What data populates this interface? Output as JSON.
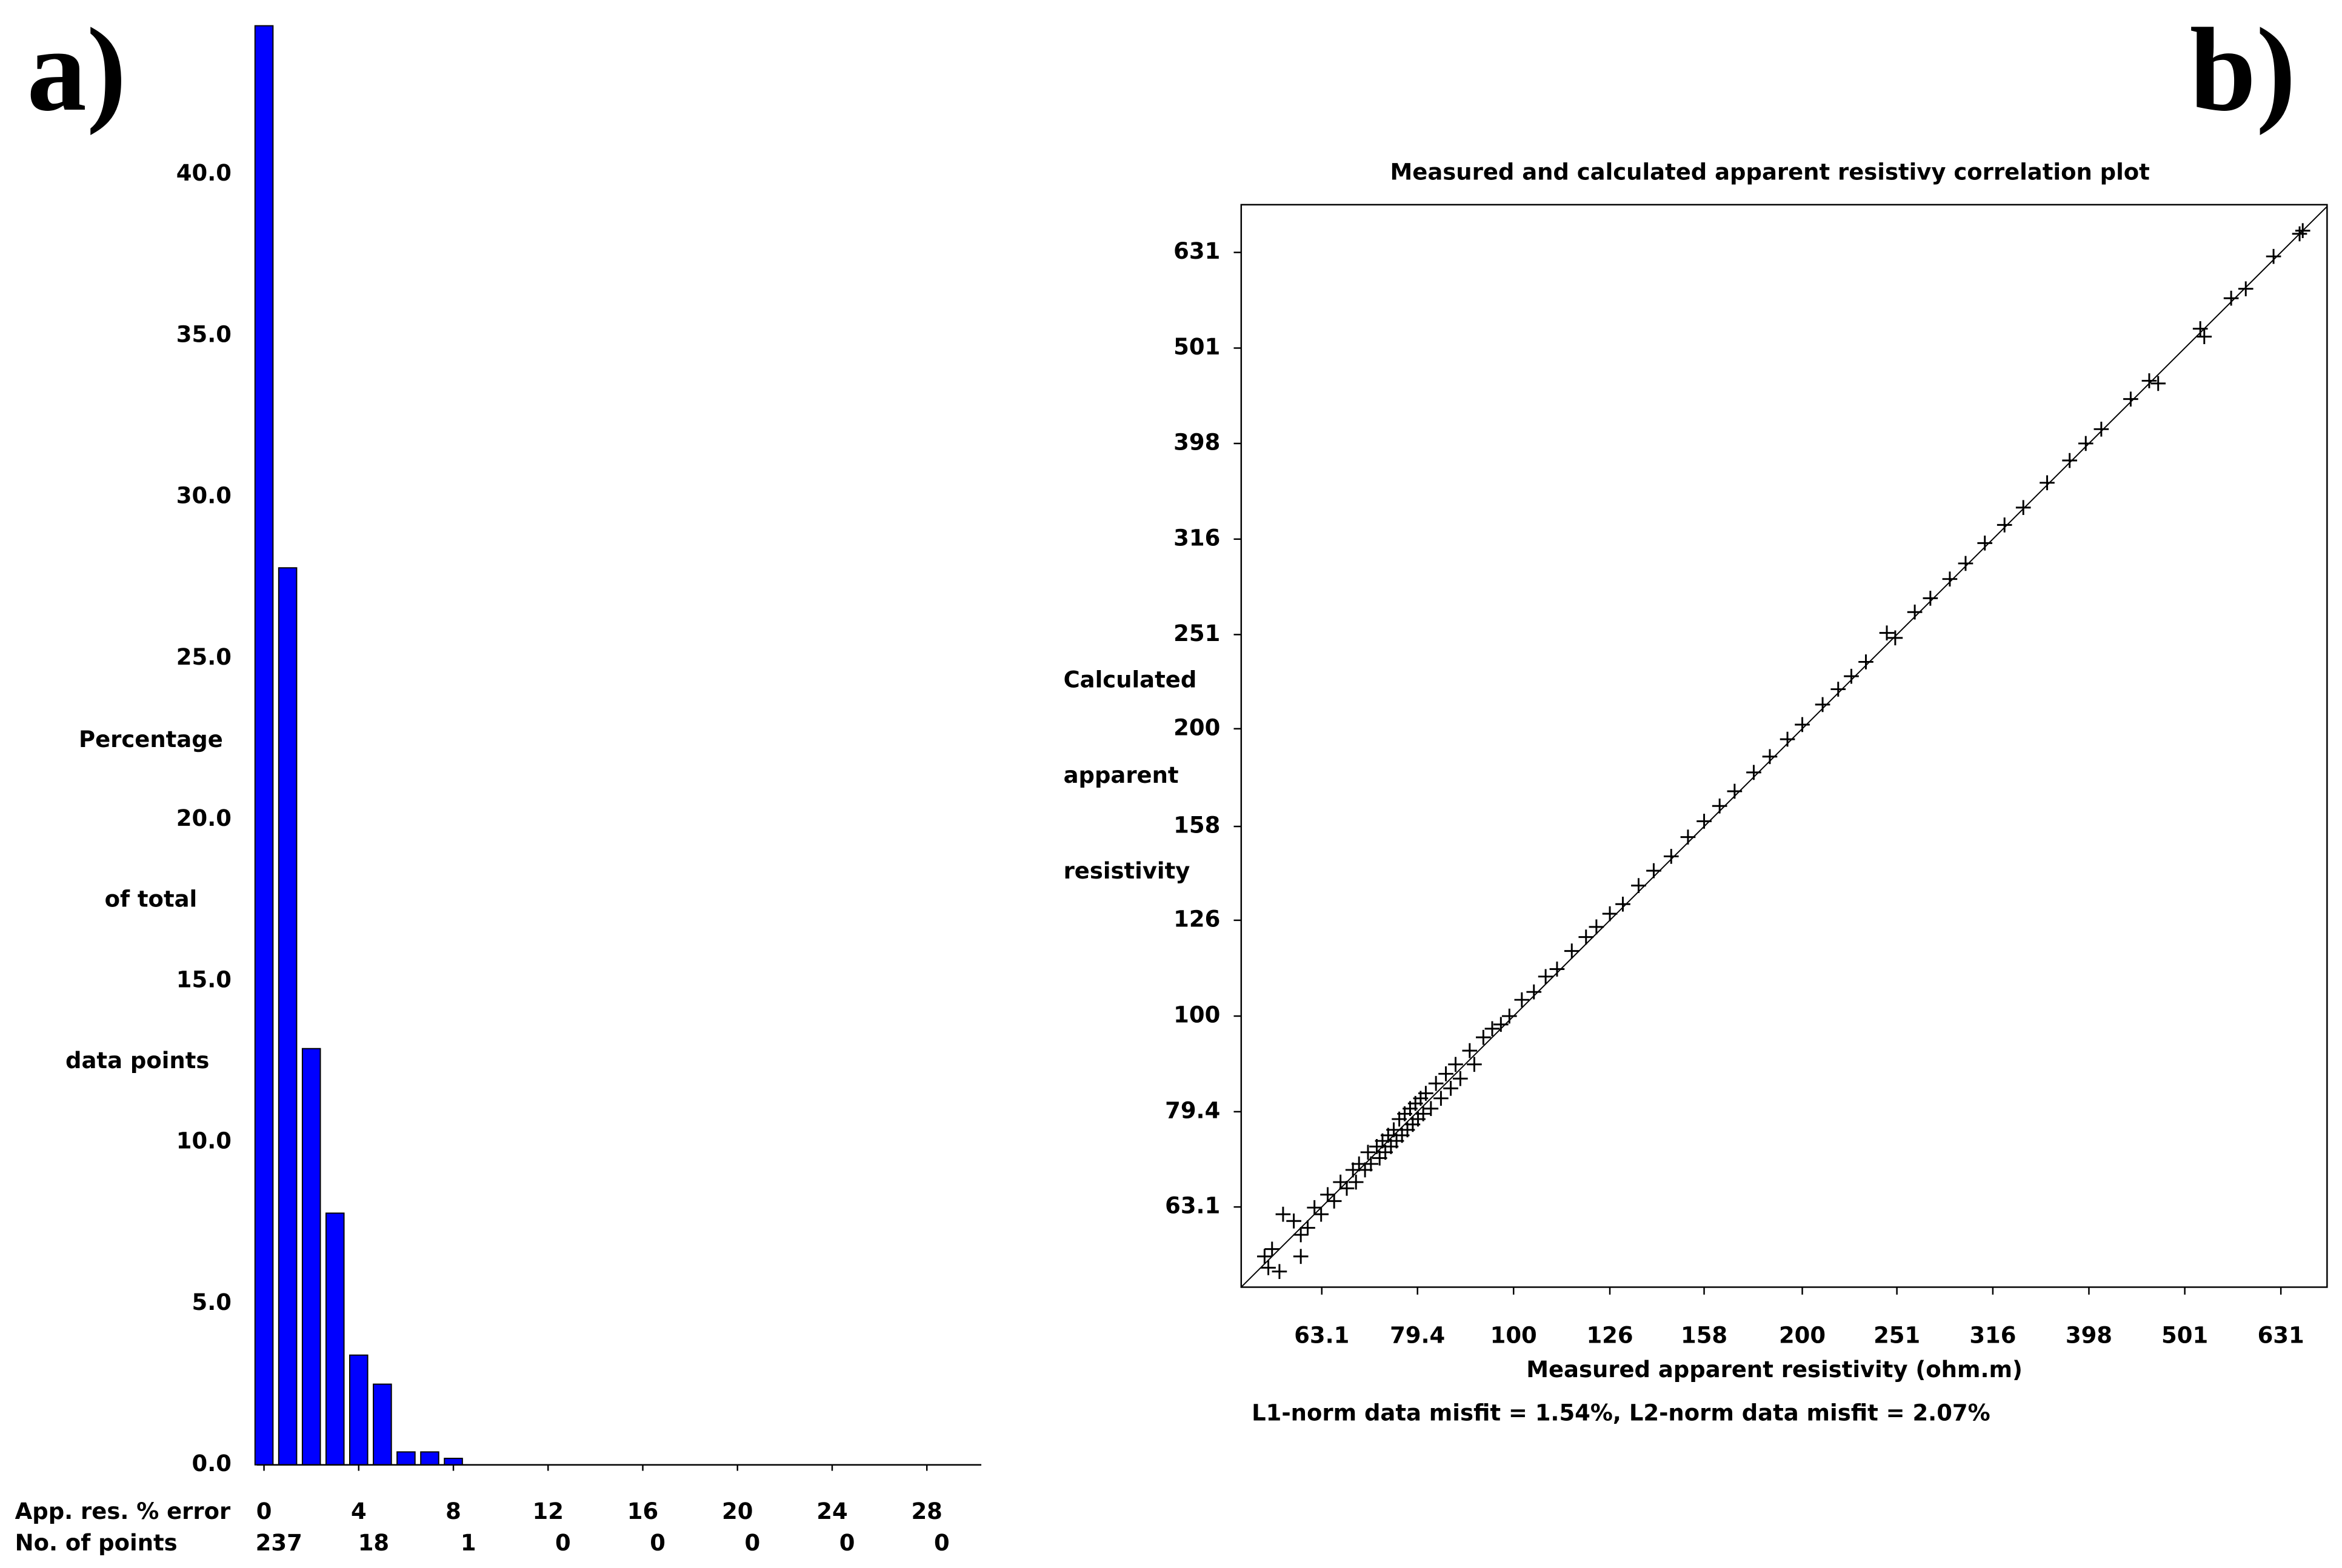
{
  "chart_data": [
    {
      "type": "bar",
      "panel_label": "a)",
      "y_label_lines": [
        "Percentage",
        "of total",
        "data points"
      ],
      "x_row_label": "App. res. % error",
      "count_row_label": "No. of points",
      "x": [
        0,
        1,
        2,
        3,
        4,
        5,
        6,
        7,
        8
      ],
      "values": [
        44.6,
        27.8,
        12.9,
        7.8,
        3.4,
        2.5,
        0.4,
        0.4,
        0.2
      ],
      "color": "#0000ff",
      "xlim": [
        -0.3,
        30.3
      ],
      "xticks": [
        0,
        4,
        8,
        12,
        16,
        20,
        24,
        28
      ],
      "point_counts": [
        237,
        18,
        1,
        0,
        0,
        0,
        0,
        0
      ],
      "ylim": [
        0,
        44.7
      ],
      "yticks": [
        {
          "value": 0,
          "label": "0.0"
        },
        {
          "value": 5,
          "label": "5.0"
        },
        {
          "value": 10,
          "label": "10.0"
        },
        {
          "value": 15,
          "label": "15.0"
        },
        {
          "value": 20,
          "label": "20.0"
        },
        {
          "value": 25,
          "label": "25.0"
        },
        {
          "value": 30,
          "label": "30.0"
        },
        {
          "value": 35,
          "label": "35.0"
        },
        {
          "value": 40,
          "label": "40.0"
        }
      ]
    },
    {
      "type": "scatter",
      "panel_label": "b)",
      "title": "Measured and calculated apparent resistivy correlation plot",
      "x_label": "Measured apparent resistivity (ohm.m)",
      "y_label_lines": [
        "Calculated",
        "apparent",
        "resistivity"
      ],
      "note": "L1-norm data misfit = 1.54%,  L2-norm data misfit = 2.07%",
      "log": true,
      "color": "#000000",
      "diagonal": true,
      "xlim": [
        52,
        705
      ],
      "ylim": [
        52,
        708
      ],
      "xticks": [
        63.1,
        79.4,
        100,
        126,
        158,
        200,
        251,
        316,
        398,
        501,
        631
      ],
      "yticks": [
        63.1,
        79.4,
        100,
        126,
        158,
        200,
        251,
        316,
        398,
        501,
        631
      ],
      "x": [
        55,
        55.5,
        56,
        57,
        57.5,
        59,
        60,
        60,
        61,
        62,
        63,
        64,
        65,
        66,
        67,
        68,
        68.5,
        69,
        70,
        70.5,
        71,
        72,
        72.5,
        73,
        73.5,
        74,
        74.5,
        75,
        75.5,
        76,
        76.5,
        77,
        77.5,
        78,
        78.5,
        79,
        79.5,
        80,
        80.5,
        81,
        82,
        83,
        84,
        85,
        86,
        87,
        88,
        90,
        91,
        93,
        95,
        97,
        99,
        102,
        105,
        108,
        111,
        115,
        119,
        122,
        126,
        130,
        135,
        140,
        146,
        152,
        158,
        164,
        170,
        178,
        185,
        193,
        200,
        210,
        218,
        225,
        233,
        245,
        250,
        262,
        272,
        285,
        296,
        310,
        325,
        340,
        360,
        380,
        395,
        410,
        440,
        460,
        470,
        520,
        525,
        560,
        580,
        620,
        660,
        665
      ],
      "y": [
        56,
        54.5,
        57,
        54,
        62,
        61,
        59,
        56,
        60,
        63,
        62,
        65,
        64,
        67,
        66,
        69,
        67,
        70,
        69,
        72,
        70,
        73,
        71,
        74,
        72,
        75,
        73,
        76,
        74,
        78,
        75,
        79,
        76,
        80,
        77,
        81,
        78,
        82,
        79,
        83,
        80,
        85,
        82,
        87,
        84,
        89,
        86,
        92,
        89,
        95,
        97,
        98,
        100,
        104,
        106,
        110,
        112,
        117,
        121,
        124,
        128,
        131,
        137,
        142,
        147,
        154,
        160,
        166,
        172,
        180,
        187,
        195,
        202,
        212,
        220,
        227,
        235,
        252,
        249,
        265,
        274,
        287,
        298,
        313,
        327,
        341,
        362,
        382,
        398,
        412,
        443,
        463,
        460,
        525,
        515,
        565,
        578,
        625,
        660,
        665
      ]
    }
  ]
}
